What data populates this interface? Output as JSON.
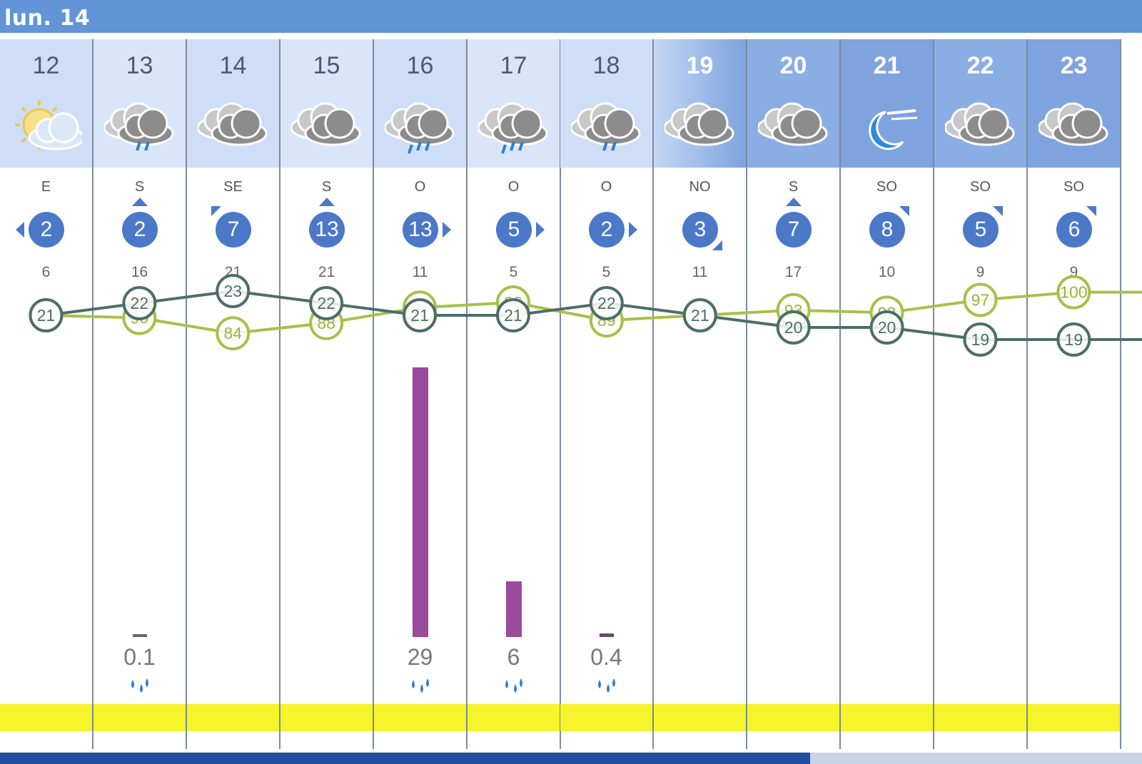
{
  "header": {
    "title": "lun. 14"
  },
  "colors": {
    "header": "#6294d8",
    "rain": "#9b4a9c",
    "temp": "#4d6e68",
    "humidity": "#a8c04a",
    "yellow": "#f6f42a"
  },
  "columns": [
    {
      "day": "12",
      "icon": "sun-cloud-icon",
      "dir": "E",
      "wind": "2",
      "gust": "6",
      "rain": "",
      "rain_amount": 0,
      "night": false
    },
    {
      "day": "13",
      "icon": "storm-cloud-icon",
      "dir": "S",
      "wind": "2",
      "gust": "16",
      "rain": "0.1",
      "rain_amount": 0.1,
      "night": false
    },
    {
      "day": "14",
      "icon": "cloud-icon",
      "dir": "SE",
      "wind": "7",
      "gust": "21",
      "rain": "",
      "rain_amount": 0,
      "night": false
    },
    {
      "day": "15",
      "icon": "cloud-icon",
      "dir": "S",
      "wind": "13",
      "gust": "21",
      "rain": "",
      "rain_amount": 0,
      "night": false
    },
    {
      "day": "16",
      "icon": "rain-cloud-icon",
      "dir": "O",
      "wind": "13",
      "gust": "11",
      "rain": "29",
      "rain_amount": 29,
      "night": false
    },
    {
      "day": "17",
      "icon": "rain-cloud-icon",
      "dir": "O",
      "wind": "5",
      "gust": "5",
      "rain": "6",
      "rain_amount": 6,
      "night": false
    },
    {
      "day": "18",
      "icon": "storm-cloud-icon",
      "dir": "O",
      "wind": "2",
      "gust": "5",
      "rain": "0.4",
      "rain_amount": 0.4,
      "night": false
    },
    {
      "day": "19",
      "icon": "cloud-icon",
      "dir": "NO",
      "wind": "3",
      "gust": "11",
      "rain": "",
      "rain_amount": 0,
      "night": true
    },
    {
      "day": "20",
      "icon": "cloud-icon",
      "dir": "S",
      "wind": "7",
      "gust": "17",
      "rain": "",
      "rain_amount": 0,
      "night": true
    },
    {
      "day": "21",
      "icon": "moon-icon",
      "dir": "SO",
      "wind": "8",
      "gust": "10",
      "rain": "",
      "rain_amount": 0,
      "night": true
    },
    {
      "day": "22",
      "icon": "cloud-icon",
      "dir": "SO",
      "wind": "5",
      "gust": "9",
      "rain": "",
      "rain_amount": 0,
      "night": true
    },
    {
      "day": "23",
      "icon": "cloud-icon",
      "dir": "SO",
      "wind": "6",
      "gust": "9",
      "rain": "",
      "rain_amount": 0,
      "night": true
    }
  ],
  "chart_data": {
    "type": "line",
    "x": [
      "12",
      "13",
      "14",
      "15",
      "16",
      "17",
      "18",
      "19",
      "20",
      "21",
      "22",
      "23"
    ],
    "series": [
      {
        "values": [
          21,
          22,
          23,
          22,
          21,
          21,
          22,
          21,
          20,
          20,
          19,
          19
        ]
      },
      {
        "values": [
          91,
          90,
          84,
          88,
          94,
          96,
          89,
          91,
          93,
          92,
          97,
          100
        ]
      }
    ],
    "rain": [
      0,
      0.1,
      0,
      0,
      29,
      6,
      0.4,
      0,
      0,
      0,
      0,
      0
    ]
  }
}
